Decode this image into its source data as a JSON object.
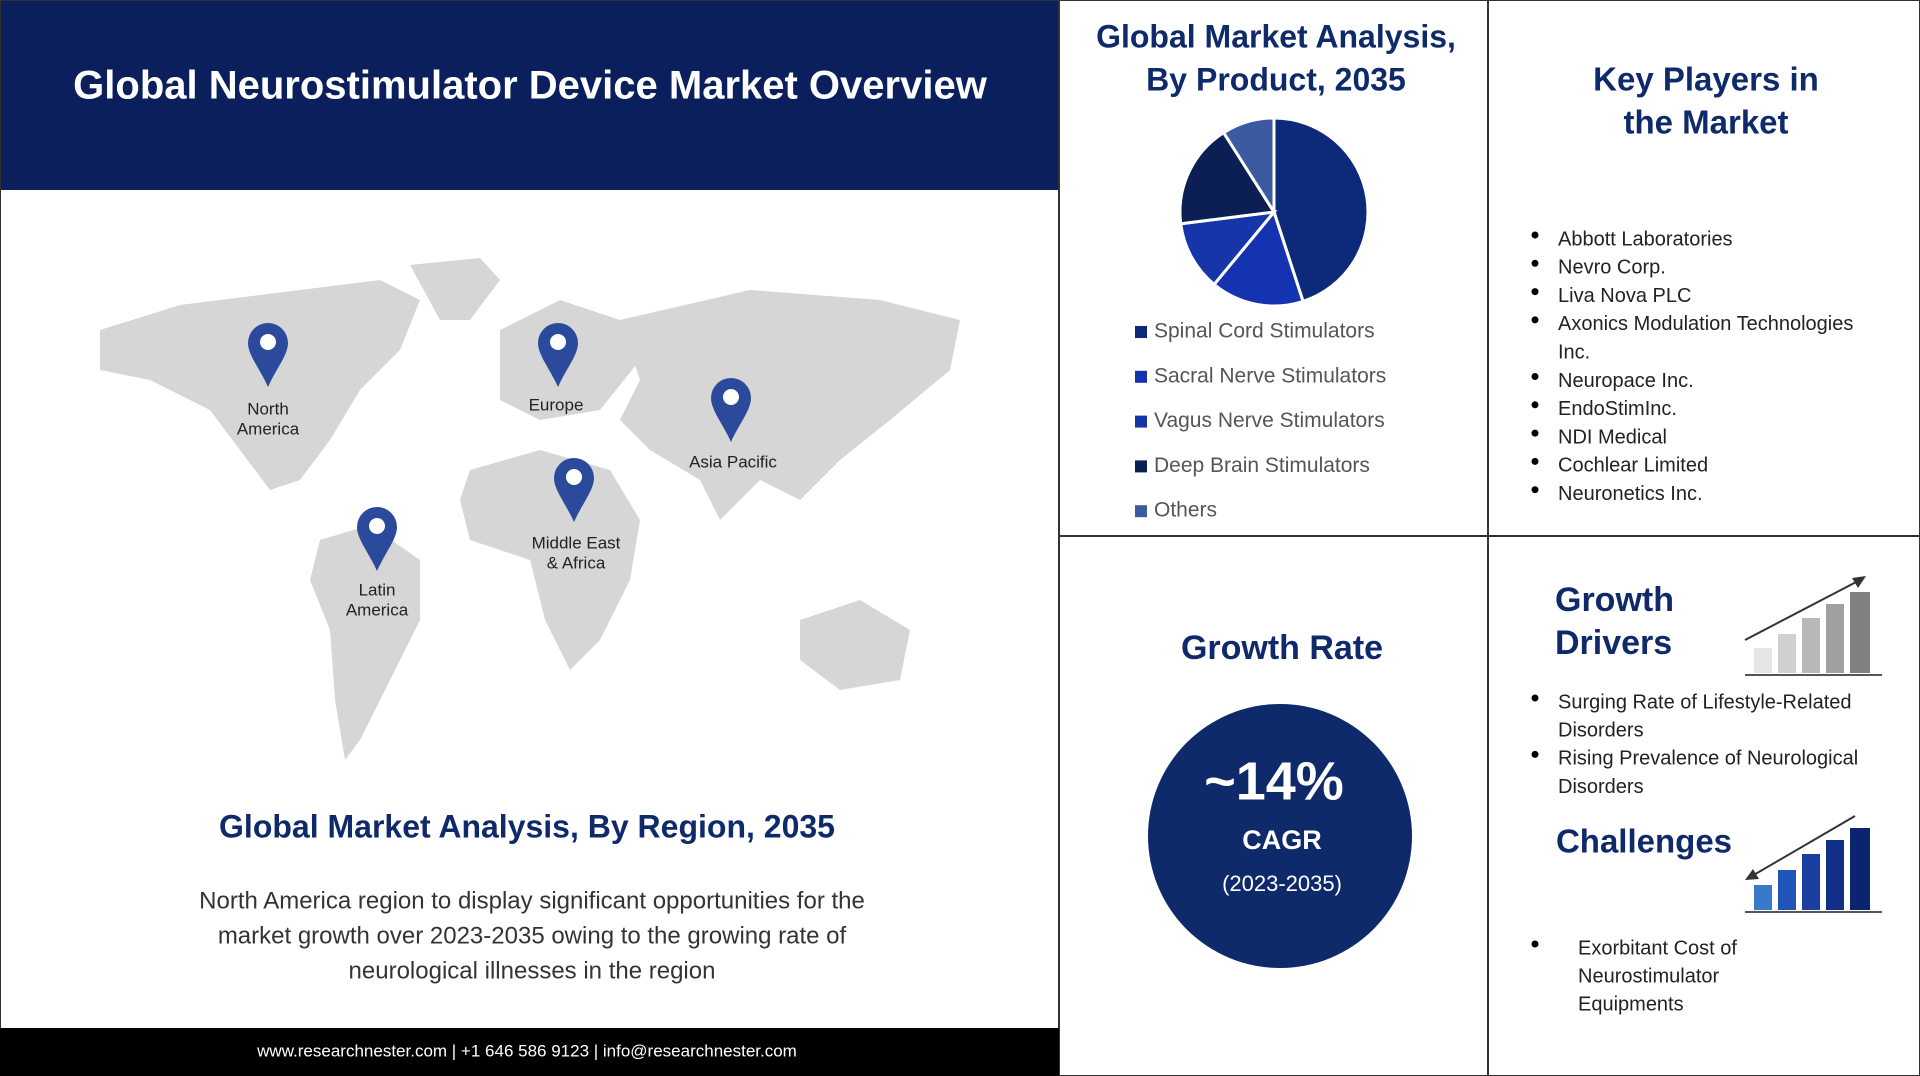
{
  "header": {
    "title": "Global Neurostimulator Device Market Overview"
  },
  "map": {
    "regions": [
      {
        "label_lines": [
          "North",
          "America"
        ]
      },
      {
        "label_lines": [
          "Europe"
        ]
      },
      {
        "label_lines": [
          "Asia Pacific"
        ]
      },
      {
        "label_lines": [
          "Middle East",
          "& Africa"
        ]
      },
      {
        "label_lines": [
          "Latin",
          "America"
        ]
      }
    ]
  },
  "region_analysis": {
    "title": "Global Market Analysis, By Region, 2035",
    "text_lines": [
      "North America region to display significant opportunities for the",
      "market growth over 2023-2035  owing to the growing rate of",
      "neurological illnesses in the region"
    ]
  },
  "footer": {
    "text": "www.researchnester.com  | +1 646 586 9123 | info@researchnester.com"
  },
  "chart_data": {
    "type": "pie",
    "title_lines": [
      "Global Market Analysis,",
      "By Product, 2035"
    ],
    "categories": [
      "Spinal Cord Stimulators",
      "Sacral Nerve Stimulators",
      "Vagus Nerve Stimulators",
      "Deep Brain Stimulators",
      "Others"
    ],
    "values": [
      45,
      16,
      12,
      18,
      9
    ],
    "colors": [
      "#0d2a7a",
      "#1433b0",
      "#1535a8",
      "#0b1f55",
      "#3b5aa0"
    ]
  },
  "key_players": {
    "title_lines": [
      "Key Players in",
      "the Market"
    ],
    "items": [
      [
        "Abbott Laboratories"
      ],
      [
        "Nevro Corp."
      ],
      [
        "Liva Nova PLC"
      ],
      [
        "Axonics Modulation  Technologies",
        "Inc."
      ],
      [
        "Neuropace Inc."
      ],
      [
        "EndoStimInc."
      ],
      [
        "NDI Medical"
      ],
      [
        "Cochlear Limited"
      ],
      [
        "Neuronetics Inc."
      ]
    ]
  },
  "growth_rate": {
    "title": "Growth Rate",
    "value": "~14%",
    "label": "CAGR",
    "period": "(2023-2035)"
  },
  "growth_drivers": {
    "title_lines": [
      "Growth",
      "Drivers"
    ],
    "items": [
      [
        "Surging Rate of Lifestyle-Related",
        "Disorders"
      ],
      [
        "Rising Prevalence of Neurological",
        "Disorders"
      ]
    ]
  },
  "challenges": {
    "title": "Challenges",
    "items": [
      [
        "Exorbitant Cost of",
        "Neurostimulator",
        "Equipments"
      ]
    ]
  }
}
